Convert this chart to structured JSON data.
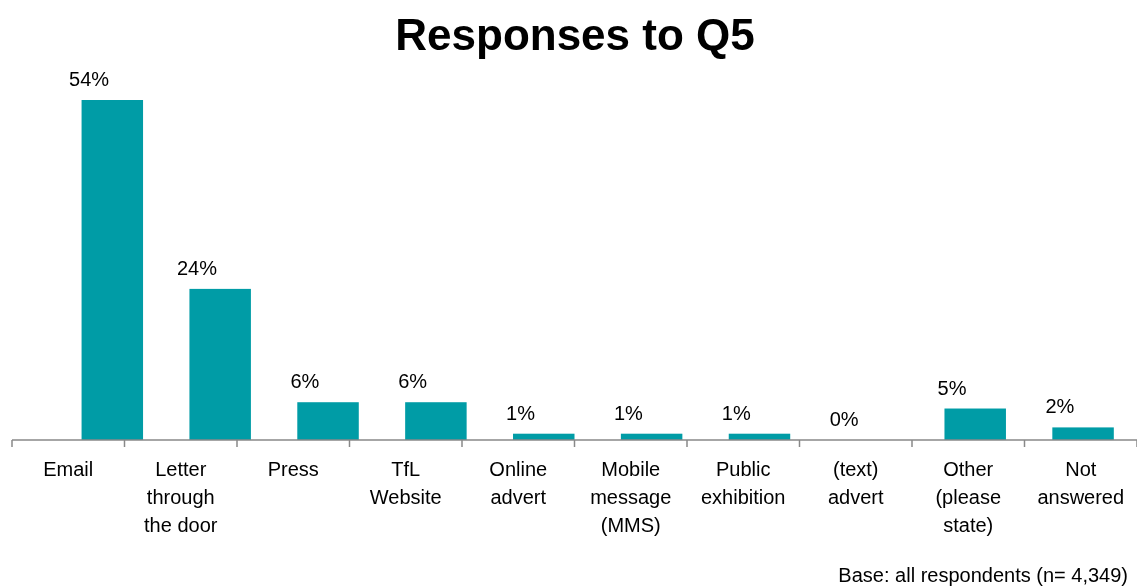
{
  "chart_data": {
    "type": "bar",
    "title": "Responses to Q5",
    "categories": [
      "Email",
      "Letter through the door",
      "Press",
      "TfL Website",
      "Online advert",
      "Mobile message (MMS)",
      "Public exhibition",
      "(text) advert",
      "Other (please state)",
      "Not answered"
    ],
    "values": [
      54,
      24,
      6,
      6,
      1,
      1,
      1,
      0,
      5,
      2
    ],
    "value_labels": [
      "54%",
      "24%",
      "6%",
      "6%",
      "1%",
      "1%",
      "1%",
      "0%",
      "5%",
      "2%"
    ],
    "color": "#009ca6",
    "annotations": [
      "Base: all respondents (n= 4,349)"
    ]
  }
}
